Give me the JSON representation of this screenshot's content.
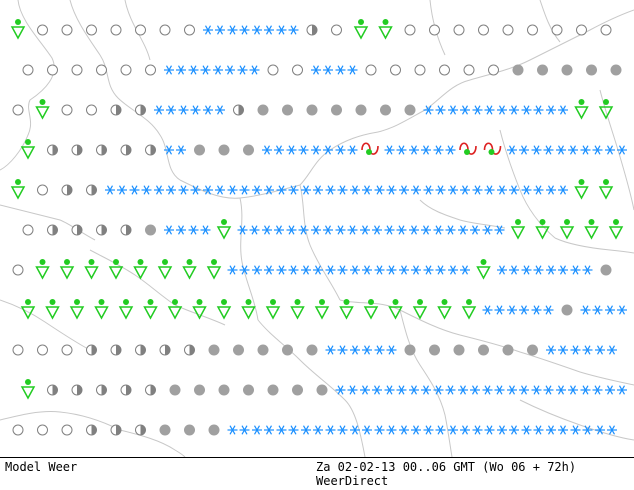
{
  "footer": {
    "model_label": "Model Weer",
    "valid_time": "Za 02-02-13 00..06 GMT (Wo 06 + 72h)",
    "source": "WeerDirect"
  },
  "colors": {
    "snow": "#1a8fff",
    "rain": "#22cc22",
    "overcast": "#a0a0a0",
    "half_cloud": "#808080",
    "clear": "#808080",
    "thunder": "#dd2222",
    "border": "#c8c8c8"
  },
  "symbol_types": {
    "C": "clear-sky-icon",
    "H": "partly-cloudy-icon",
    "O": "overcast-icon",
    "R": "rain-shower-icon",
    "RR": "rain-icon",
    "S": "snow-shower-icon",
    "SS": "snow-icon",
    "ST": "heavy-snow-icon",
    "T": "thunderstorm-icon",
    "SH": "heavy-snow-shower-icon"
  },
  "grid_rows": [
    "RCCCCCCCSSSSHCRRCCCCCCCCC",
    "CCCCCCSSSSCCSSCCCCCCOOOOO",
    "CRCCHHSSSHOOOOOOOSSSSSSRR",
    "RHHHHHSOOOSSSSTSSSTTSSSSS",
    "RCHHSSSSSSSSSSSSSSSSSSSRR",
    "CHHHHOSSRSSSSSSSSSSSRRRRR",
    "CRRRRRRRRSSSSSSSSSSRSSSSO",
    "RRRRRRRRRRRRRRRRRRRSSSOSS",
    "CCCHHHHHOOOOOSSSOOOOOOSSS",
    "RHHHHHOOOOOOOSSSSSSSSSSSS",
    "CCCHHHOOOSSSSSSSSSSSSSSSS"
  ]
}
